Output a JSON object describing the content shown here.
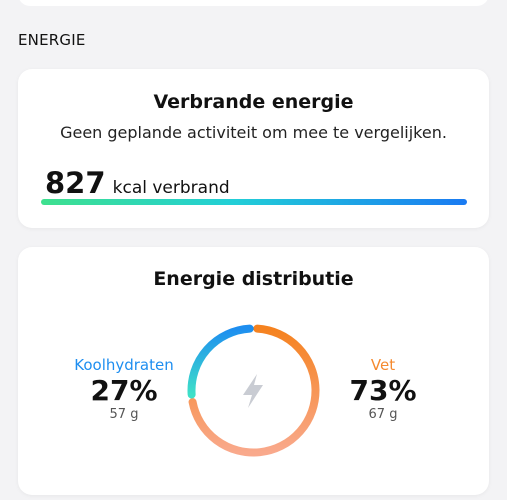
{
  "section": {
    "title": "ENERGIE"
  },
  "burned": {
    "title": "Verbrande energie",
    "subtitle": "Geen geplande activiteit om mee te vergelijken.",
    "value": "827",
    "unit": "kcal verbrand"
  },
  "distribution": {
    "title": "Energie distributie",
    "center_icon": "lightning-bolt-icon",
    "carbs": {
      "label": "Koolhydraten",
      "percent": "27%",
      "grams": "57 g",
      "fraction": 0.27,
      "color_start": "#1e8ef0",
      "color_end": "#3ee0c8"
    },
    "fat": {
      "label": "Vet",
      "percent": "73%",
      "grams": "67 g",
      "fraction": 0.73,
      "color_start": "#f5821f",
      "color_end": "#f9a98c"
    }
  }
}
